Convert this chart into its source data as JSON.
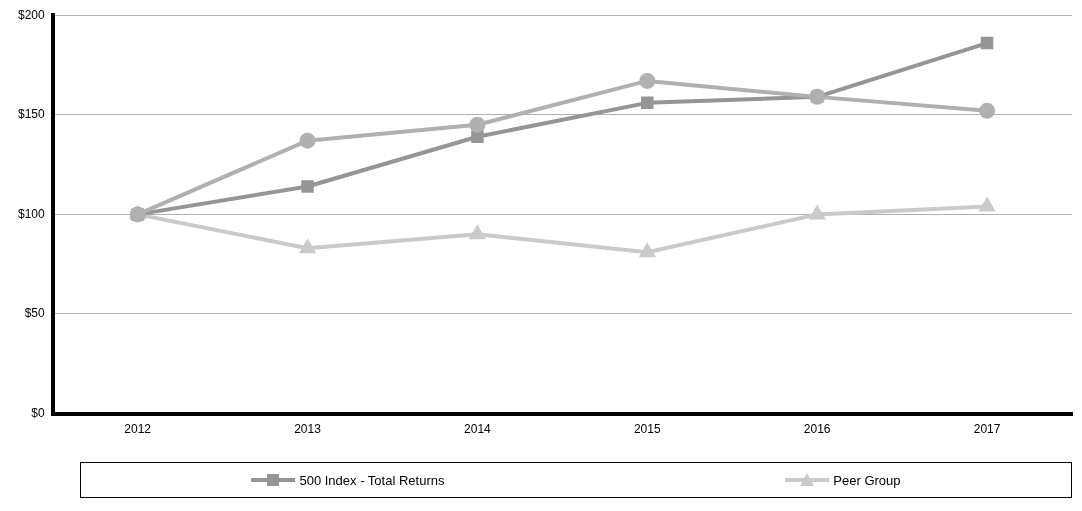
{
  "chart_data": {
    "type": "line",
    "categories": [
      "2012",
      "2013",
      "2014",
      "2015",
      "2016",
      "2017"
    ],
    "series": [
      {
        "color": "#b0b0b0",
        "marker": "circle",
        "values": [
          100,
          137,
          145,
          167,
          159,
          152
        ]
      },
      {
        "name": "500 Index - Total Returns",
        "color": "#959595",
        "marker": "square",
        "values": [
          100,
          114,
          139,
          156,
          159,
          186
        ]
      },
      {
        "name": "Peer Group",
        "color": "#cacaca",
        "marker": "triangle",
        "values": [
          100,
          83,
          90,
          81,
          100,
          104
        ]
      }
    ],
    "ylim": [
      0,
      200
    ],
    "yticks": [
      {
        "value": 0,
        "label": "$0"
      },
      {
        "value": 50,
        "label": "$50"
      },
      {
        "value": 100,
        "label": "$100"
      },
      {
        "value": 150,
        "label": "$150"
      },
      {
        "value": 200,
        "label": "$200"
      }
    ],
    "grid": "y",
    "legend": "bottom",
    "line_style": "solid"
  }
}
